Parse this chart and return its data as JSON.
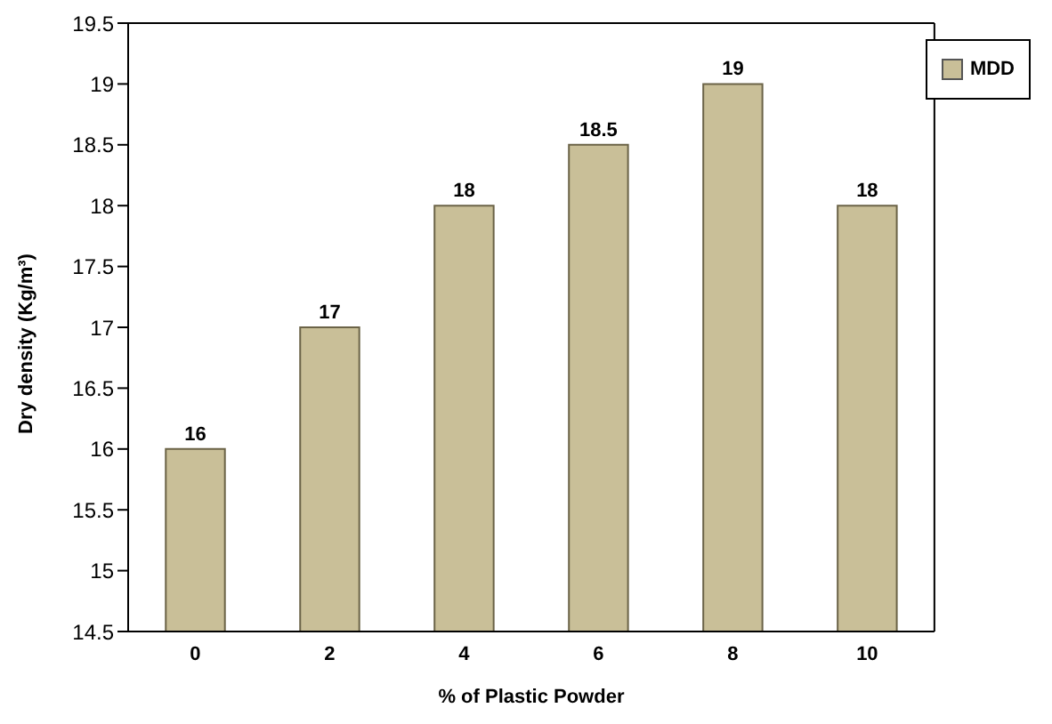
{
  "chart_data": {
    "type": "bar",
    "xlabel": "% of Plastic Powder",
    "ylabel": "Dry density (Kg/m³)",
    "categories": [
      "0",
      "2",
      "4",
      "6",
      "8",
      "10"
    ],
    "series": [
      {
        "name": "MDD",
        "color": "#c9bf98",
        "values": [
          16,
          17,
          18,
          18.5,
          19,
          18
        ]
      }
    ],
    "ylim": [
      14.5,
      19.5
    ],
    "yticks": [
      14.5,
      15,
      15.5,
      16,
      16.5,
      17,
      17.5,
      18,
      18.5,
      19,
      19.5
    ],
    "legend": "top right",
    "data_labels": true
  }
}
